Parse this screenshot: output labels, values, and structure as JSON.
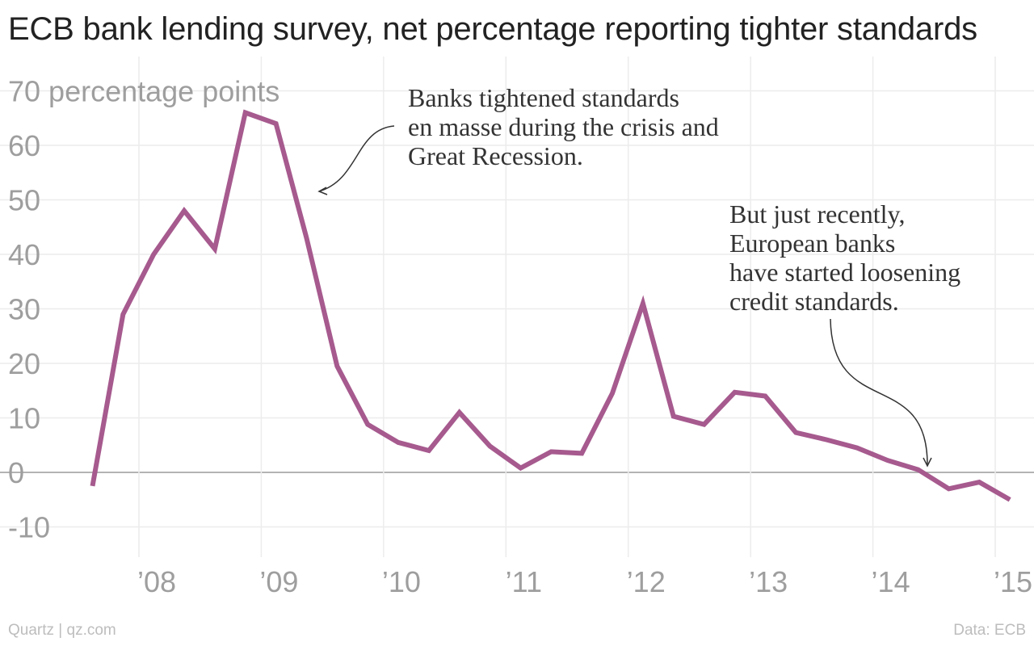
{
  "chart_data": {
    "type": "line",
    "title": "ECB bank lending survey, net percentage reporting tighter standards",
    "ylabel": "percentage points",
    "ylim": [
      -15,
      75
    ],
    "y_ticks": [
      70,
      60,
      50,
      40,
      30,
      20,
      10,
      0,
      -10
    ],
    "x_ticks": [
      "’08",
      "’09",
      "’10",
      "’11",
      "’12",
      "’13",
      "’14",
      "’15"
    ],
    "x_tick_years": [
      2008,
      2009,
      2010,
      2011,
      2012,
      2013,
      2014,
      2015
    ],
    "grid": true,
    "line_color": "#a65a8e",
    "series": [
      {
        "x": [
          2007.62,
          2007.87,
          2008.12,
          2008.37,
          2008.62,
          2008.87,
          2009.12,
          2009.37,
          2009.62,
          2009.87,
          2010.12,
          2010.37,
          2010.62,
          2010.87,
          2011.12,
          2011.37,
          2011.62,
          2011.87,
          2012.12,
          2012.37,
          2012.62,
          2012.87,
          2013.12,
          2013.37,
          2013.62,
          2013.87,
          2014.12,
          2014.37,
          2014.62,
          2014.87,
          2015.12
        ],
        "values": [
          -2.5,
          29,
          40,
          48,
          41,
          66,
          64,
          43,
          19.5,
          8.8,
          5.5,
          4,
          11,
          4.8,
          0.8,
          3.8,
          3.5,
          14.5,
          31,
          10.3,
          8.8,
          14.7,
          14,
          7.3,
          6,
          4.5,
          2.2,
          0.5,
          -3,
          -1.8,
          -5
        ]
      }
    ],
    "annotations": [
      {
        "lines": [
          "Banks tightened standards",
          "en masse during the crisis and",
          "Great Recession."
        ]
      },
      {
        "lines": [
          "But just recently,",
          "European banks",
          "have started loosening",
          "credit standards."
        ]
      }
    ]
  },
  "footer": {
    "source_left": "Quartz | qz.com",
    "source_right": "Data: ECB"
  }
}
